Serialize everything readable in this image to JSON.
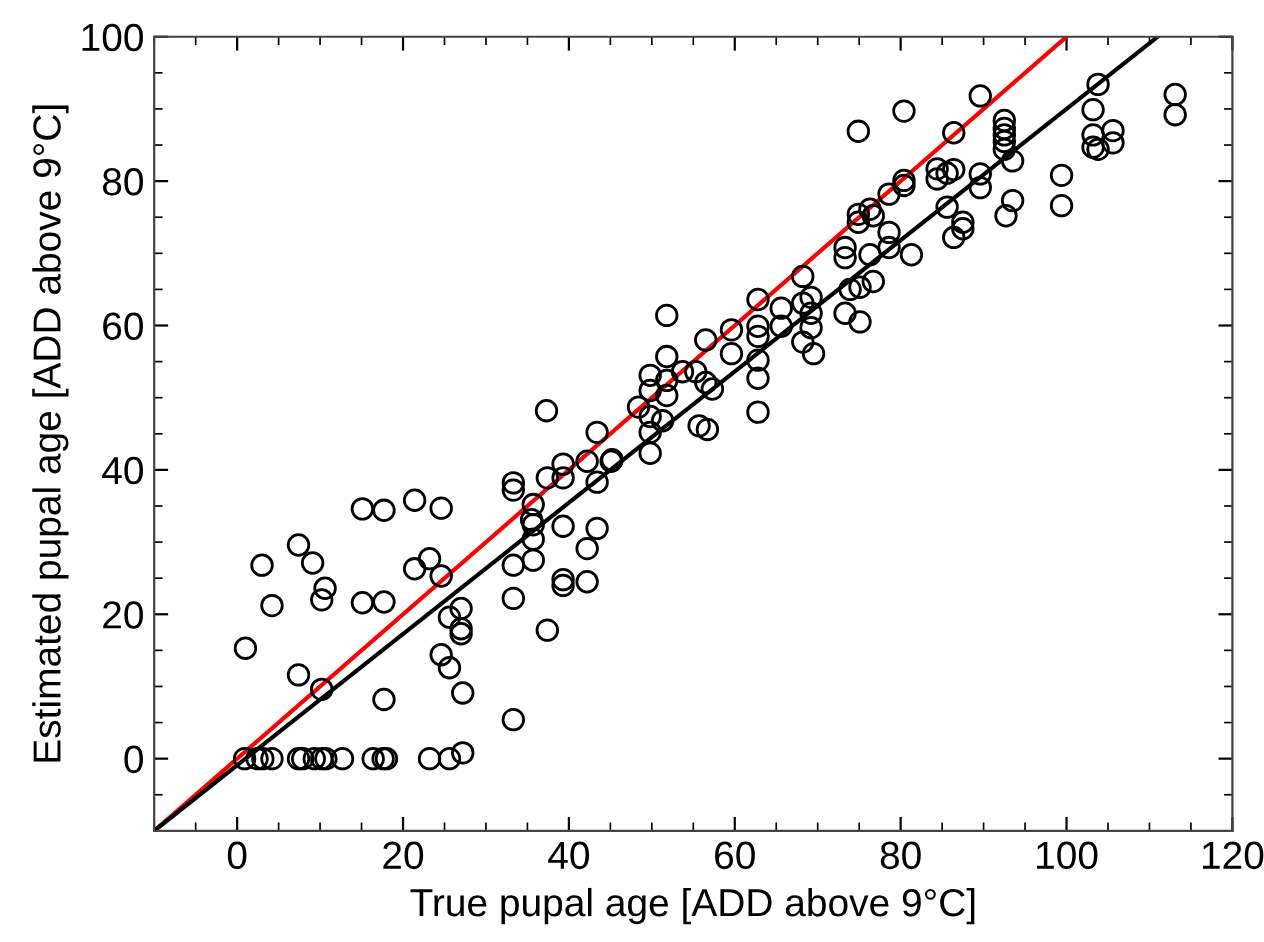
{
  "chart_data": {
    "type": "scatter",
    "xlabel": "True pupal age [ADD above 9°C]",
    "ylabel": "Estimated pupal age [ADD above 9°C]",
    "xlim": [
      -10,
      120
    ],
    "ylim": [
      -10,
      100
    ],
    "xticks": [
      0,
      20,
      40,
      60,
      80,
      100,
      120
    ],
    "yticks": [
      0,
      20,
      40,
      60,
      80,
      100
    ],
    "grid": false,
    "legend": false,
    "marker": "circle",
    "series": [
      {
        "color": "#000000",
        "x": [
          0.9,
          2.4,
          3.1,
          4.2,
          7.4,
          7.9,
          9.3,
          10.2,
          10.7,
          12.7,
          16.4,
          17.6,
          18.0,
          23.2,
          25.6,
          27.2,
          1.0,
          3.0,
          4.2,
          7.4,
          7.4,
          9.1,
          10.2,
          10.6,
          10.2,
          15.1,
          15.1,
          17.7,
          17.7,
          17.7,
          21.4,
          21.4,
          23.2,
          24.6,
          24.6,
          24.6,
          25.6,
          25.6,
          27.0,
          27.0,
          27.0,
          27.2,
          33.3,
          33.3,
          33.3,
          33.3,
          33.3,
          35.7,
          35.5,
          35.7,
          35.7,
          35.7,
          37.4,
          37.4,
          39.3,
          39.3,
          39.3,
          39.3,
          39.3,
          42.2,
          42.2,
          42.2,
          43.4,
          43.4,
          45.1,
          37.3,
          43.4,
          45.2,
          48.4,
          49.8,
          49.8,
          49.8,
          49.8,
          49.8,
          51.3,
          51.8,
          51.8,
          51.8,
          51.8,
          53.7,
          55.3,
          55.7,
          56.7,
          56.5,
          56.5,
          57.3,
          59.6,
          59.6,
          62.8,
          62.8,
          62.8,
          62.8,
          62.8,
          62.8,
          65.6,
          65.6,
          68.2,
          68.2,
          68.2,
          69.2,
          69.2,
          69.2,
          69.5,
          73.3,
          73.3,
          73.3,
          73.9,
          74.9,
          74.9,
          74.9,
          75.1,
          75.1,
          76.3,
          76.3,
          76.7,
          76.7,
          78.6,
          78.6,
          78.6,
          80.4,
          80.4,
          80.4,
          81.3,
          84.4,
          84.4,
          85.6,
          86.4,
          86.4,
          85.6,
          86.4,
          87.5,
          87.5,
          89.6,
          89.6,
          89.6,
          92.5,
          92.5,
          92.5,
          92.5,
          92.5,
          93.5,
          93.5,
          92.7,
          99.4,
          99.4,
          103.8,
          103.2,
          103.2,
          103.2,
          103.8,
          105.6,
          105.6,
          113.1,
          113.1
        ],
        "values": [
          0,
          0,
          0,
          0,
          0,
          0,
          0,
          0,
          0,
          0,
          0,
          0,
          0,
          0,
          0,
          0.8,
          15.3,
          26.8,
          21.2,
          29.6,
          11.6,
          27.1,
          22.0,
          23.6,
          9.6,
          34.6,
          21.6,
          34.4,
          21.7,
          8.2,
          35.8,
          26.3,
          27.7,
          34.7,
          25.3,
          14.4,
          12.6,
          19.6,
          20.8,
          18.0,
          17.3,
          9.1,
          38.2,
          37.2,
          26.8,
          22.2,
          5.4,
          35.2,
          33.1,
          32.4,
          30.4,
          27.5,
          38.9,
          17.8,
          40.8,
          38.9,
          32.2,
          24.8,
          24.0,
          41.2,
          29.1,
          24.5,
          38.3,
          31.9,
          41.2,
          48.2,
          45.2,
          41.4,
          48.7,
          53.1,
          51.0,
          47.4,
          45.2,
          42.3,
          46.8,
          61.4,
          55.7,
          52.4,
          50.3,
          53.6,
          53.6,
          46.1,
          45.6,
          58.0,
          52.1,
          51.2,
          59.4,
          56.1,
          63.6,
          59.9,
          58.5,
          55.2,
          52.7,
          48.0,
          62.4,
          59.9,
          66.8,
          63.1,
          57.7,
          63.9,
          61.7,
          59.7,
          56.1,
          70.8,
          69.4,
          61.7,
          65.0,
          86.9,
          75.4,
          74.3,
          60.5,
          65.3,
          69.8,
          76.1,
          66.1,
          75.2,
          78.2,
          72.9,
          70.8,
          80.1,
          79.4,
          89.7,
          69.8,
          81.7,
          80.3,
          81.1,
          81.6,
          86.7,
          76.4,
          72.2,
          74.3,
          73.4,
          91.8,
          81.0,
          79.1,
          88.4,
          87.3,
          86.4,
          85.5,
          84.4,
          82.8,
          77.3,
          75.2,
          80.8,
          76.6,
          93.4,
          89.9,
          86.4,
          84.7,
          84.4,
          87.0,
          85.3,
          92.0,
          89.2
        ]
      },
      {
        "type": "line",
        "color": "#ff0000",
        "x": [
          -10,
          100
        ],
        "values": [
          -10,
          100
        ],
        "marker": "none"
      },
      {
        "type": "line",
        "color": "#000000",
        "x": [
          -10,
          111
        ],
        "values": [
          -10,
          100
        ],
        "marker": "none"
      }
    ]
  }
}
